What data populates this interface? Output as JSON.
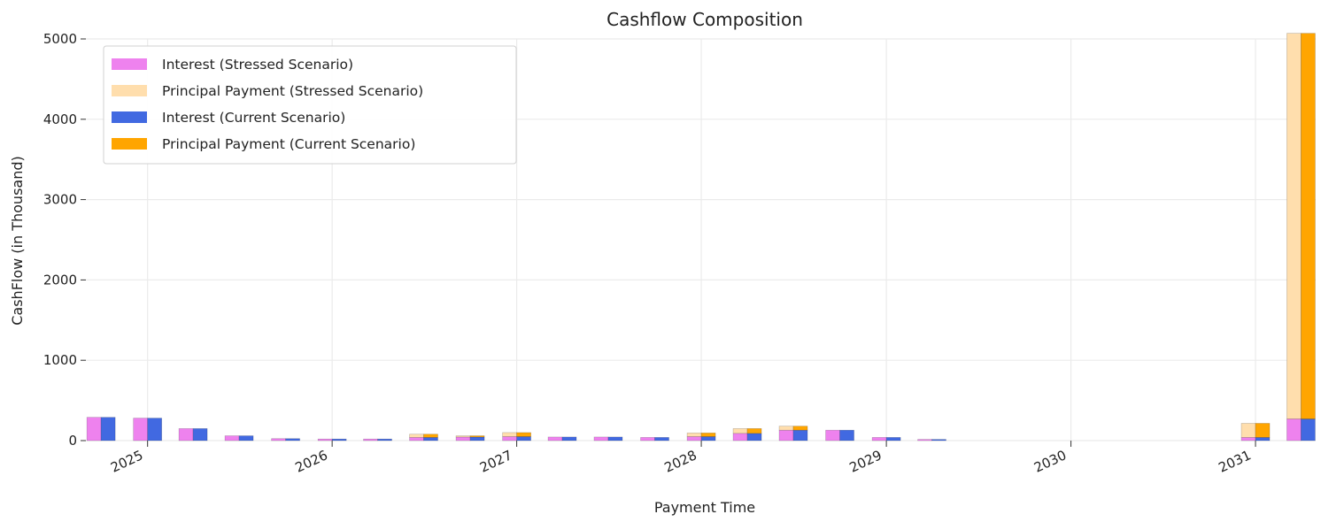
{
  "chart_data": {
    "type": "bar",
    "title": "Cashflow Composition",
    "xlabel": "Payment Time",
    "ylabel": "CashFlow (in Thousand)",
    "ylim": [
      0,
      5000
    ],
    "xlim": [
      "2024-09-01",
      "2031-04-30"
    ],
    "yticks": [
      0,
      1000,
      2000,
      3000,
      4000,
      5000
    ],
    "xticks": [
      "2025",
      "2026",
      "2027",
      "2028",
      "2029",
      "2030",
      "2031"
    ],
    "grid": true,
    "stacked": true,
    "legend_position": "top-left",
    "dates": [
      "2024-10",
      "2025-01",
      "2025-04",
      "2025-07",
      "2025-10",
      "2026-01",
      "2026-04",
      "2026-07",
      "2026-10",
      "2027-01",
      "2027-04",
      "2027-07",
      "2027-10",
      "2028-01",
      "2028-04",
      "2028-07",
      "2028-10",
      "2029-01",
      "2029-04",
      "2031-01",
      "2031-04"
    ],
    "series": [
      {
        "name": "Interest (Stressed Scenario)",
        "color": "#ee82ee",
        "group": "stressed",
        "stack_order": 0,
        "values": [
          290,
          280,
          150,
          60,
          25,
          20,
          20,
          40,
          45,
          50,
          45,
          45,
          40,
          50,
          90,
          130,
          130,
          40,
          15,
          40,
          270
        ]
      },
      {
        "name": "Principal Payment (Stressed Scenario)",
        "color": "#ffdead",
        "group": "stressed",
        "stack_order": 1,
        "values": [
          0,
          0,
          0,
          0,
          0,
          0,
          0,
          40,
          15,
          50,
          0,
          0,
          0,
          45,
          60,
          50,
          0,
          0,
          0,
          175,
          4800
        ]
      },
      {
        "name": "Interest (Current Scenario)",
        "color": "#4169e1",
        "group": "current",
        "stack_order": 0,
        "values": [
          290,
          280,
          150,
          60,
          25,
          20,
          20,
          40,
          45,
          50,
          45,
          45,
          40,
          50,
          90,
          130,
          130,
          40,
          15,
          40,
          270
        ]
      },
      {
        "name": "Principal Payment (Current Scenario)",
        "color": "#ffa500",
        "group": "current",
        "stack_order": 1,
        "values": [
          0,
          0,
          0,
          0,
          0,
          0,
          0,
          40,
          15,
          50,
          0,
          0,
          0,
          45,
          60,
          50,
          0,
          0,
          0,
          175,
          4800
        ]
      }
    ]
  }
}
